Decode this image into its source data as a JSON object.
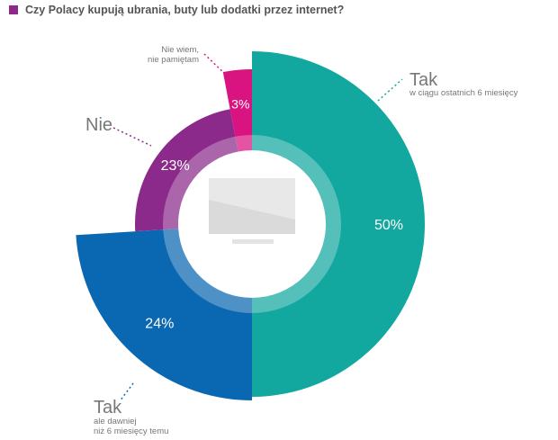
{
  "title": "Czy Polacy kupują ubrania, buty lub dodatki przez internet?",
  "colors": {
    "title_marker": "#8B2A8A",
    "tak_recent": "#12A89F",
    "tak_earlier": "#0A67B1",
    "nie": "#8B2A8A",
    "nie_wiem": "#D9137F",
    "label_text": "#777777"
  },
  "icon": "monitor-icon",
  "chart_data": {
    "type": "pie",
    "variant": "donut",
    "slices": [
      {
        "name_main": "Tak",
        "name_sub": "w ciągu ostatnich 6 miesięcy",
        "value": 50,
        "label": "50%",
        "color": "#12A89F"
      },
      {
        "name_main": "Tak",
        "name_sub": "ale dawniej niż 6 miesięcy temu",
        "value": 24,
        "label": "24%",
        "color": "#0A67B1"
      },
      {
        "name_main": "Nie",
        "name_sub": "",
        "value": 23,
        "label": "23%",
        "color": "#8B2A8A"
      },
      {
        "name_main": "",
        "name_sub": "Nie wiem, nie pamiętam",
        "value": 3,
        "label": "3%",
        "color": "#D9137F"
      }
    ]
  },
  "labels": {
    "tak_recent_main": "Tak",
    "tak_recent_sub": "w ciągu ostatnich 6 miesięcy",
    "tak_earlier_main": "Tak",
    "tak_earlier_sub1": "ale dawniej",
    "tak_earlier_sub2": "niż 6 miesięcy temu",
    "nie_main": "Nie",
    "nie_wiem_line1": "Nie wiem,",
    "nie_wiem_line2": "nie pamiętam"
  }
}
